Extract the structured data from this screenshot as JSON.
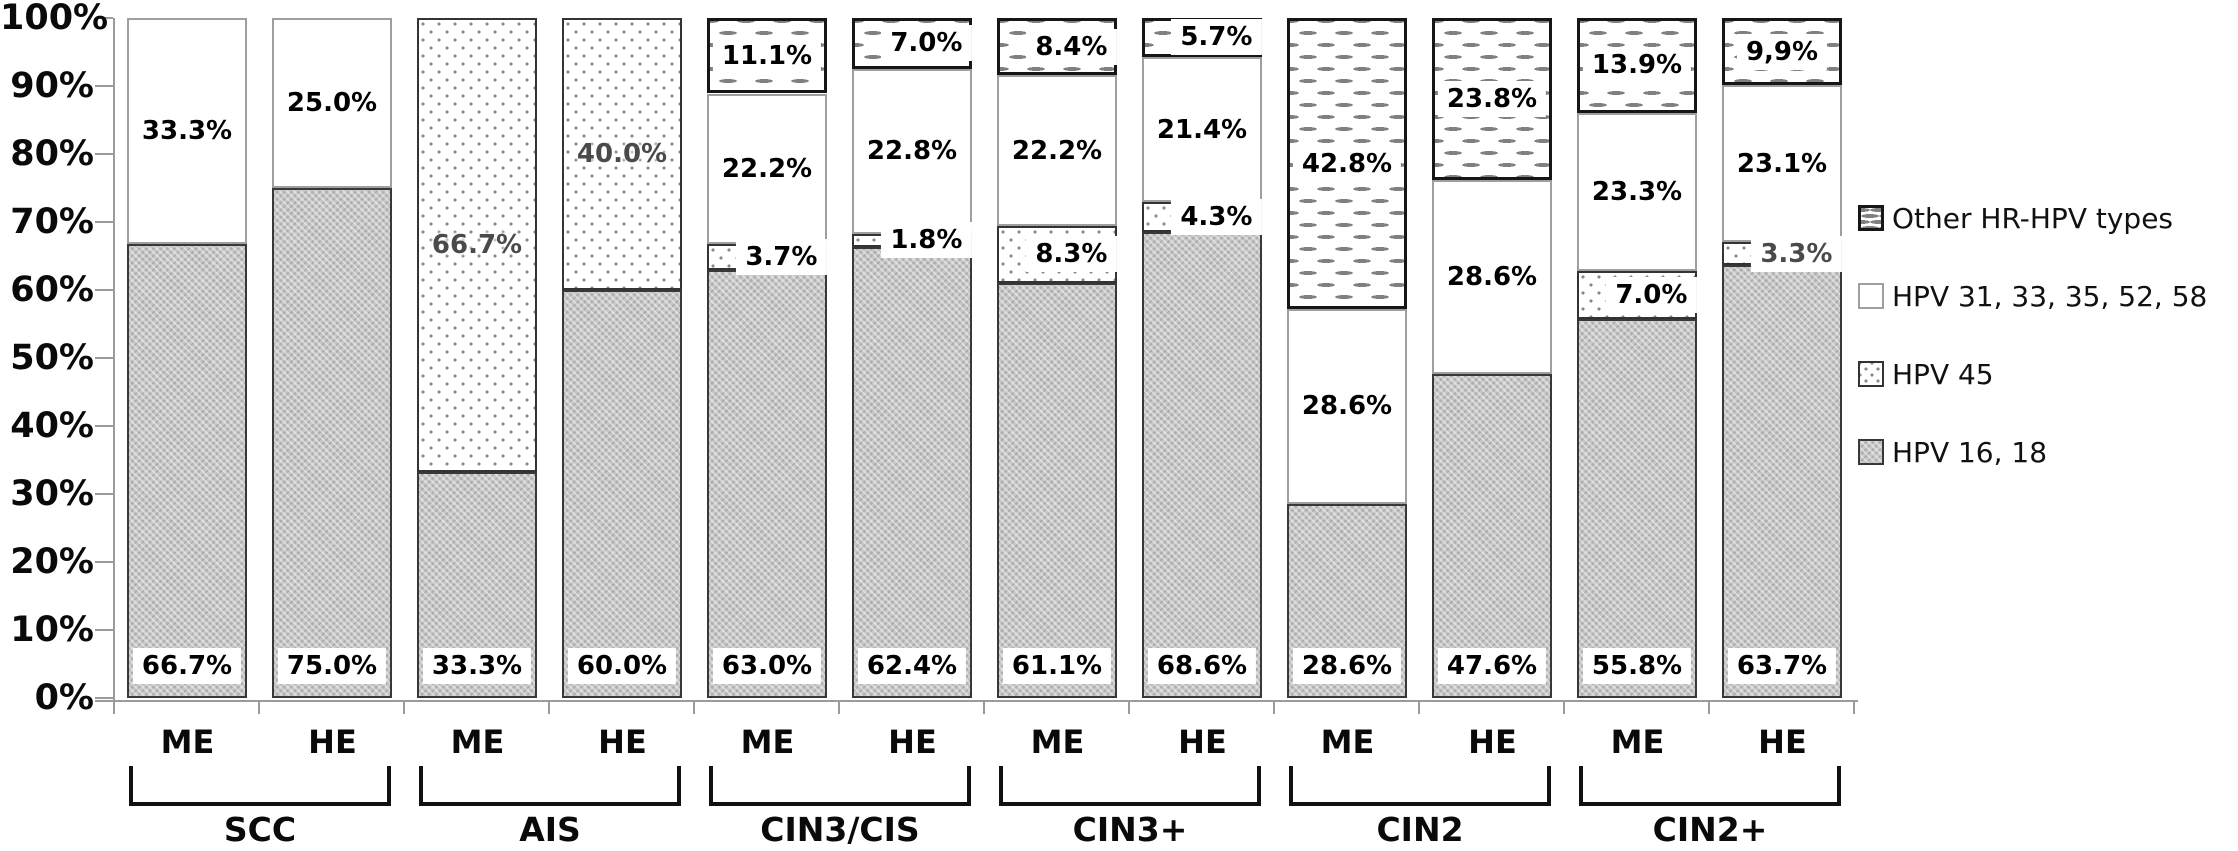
{
  "chart_data": {
    "type": "bar",
    "stacked": true,
    "percent_axis": true,
    "ylim": [
      0,
      100
    ],
    "grid": false,
    "legend_position": "right",
    "ytick_labels": [
      "0%",
      "10%",
      "20%",
      "30%",
      "40%",
      "50%",
      "60%",
      "70%",
      "80%",
      "90%",
      "100%"
    ],
    "series_order_bottom_to_top": [
      "hpv1618",
      "hpv45",
      "hpv31",
      "other"
    ],
    "legend": [
      {
        "key": "other",
        "label": "Other HR-HPV types",
        "pattern": "horizontal-dashes"
      },
      {
        "key": "hpv31",
        "label": "HPV 31, 33, 35, 52, 58",
        "pattern": "plain-white"
      },
      {
        "key": "hpv45",
        "label": "HPV 45",
        "pattern": "dots"
      },
      {
        "key": "hpv1618",
        "label": "HPV 16, 18",
        "pattern": "gray-weave"
      }
    ],
    "groups": [
      {
        "label": "SCC",
        "bars": [
          {
            "label": "ME",
            "segments": [
              {
                "series": "hpv1618",
                "value": 66.7,
                "label": "66.7%"
              },
              {
                "series": "hpv31",
                "value": 33.3,
                "label": "33.3%"
              }
            ]
          },
          {
            "label": "HE",
            "segments": [
              {
                "series": "hpv1618",
                "value": 75.0,
                "label": "75.0%"
              },
              {
                "series": "hpv31",
                "value": 25.0,
                "label": "25.0%"
              }
            ]
          }
        ]
      },
      {
        "label": "AIS",
        "bars": [
          {
            "label": "ME",
            "segments": [
              {
                "series": "hpv1618",
                "value": 33.3,
                "label": "33.3%"
              },
              {
                "series": "hpv45",
                "value": 66.7,
                "label": "66.7%",
                "muted": true,
                "nobox": true
              }
            ]
          },
          {
            "label": "HE",
            "segments": [
              {
                "series": "hpv1618",
                "value": 60.0,
                "label": "60.0%"
              },
              {
                "series": "hpv45",
                "value": 40.0,
                "label": "40.0%",
                "muted": true,
                "nobox": true
              }
            ]
          }
        ]
      },
      {
        "label": "CIN3/CIS",
        "bars": [
          {
            "label": "ME",
            "segments": [
              {
                "series": "hpv1618",
                "value": 63.0,
                "label": "63.0%"
              },
              {
                "series": "hpv45",
                "value": 3.7,
                "label": "3.7%"
              },
              {
                "series": "hpv31",
                "value": 22.2,
                "label": "22.2%"
              },
              {
                "series": "other",
                "value": 11.1,
                "label": "11.1%"
              }
            ]
          },
          {
            "label": "HE",
            "segments": [
              {
                "series": "hpv1618",
                "value": 62.4,
                "label": "62.4%"
              },
              {
                "series": "hpv45",
                "value": 1.8,
                "label": "1.8%"
              },
              {
                "series": "hpv31",
                "value": 22.8,
                "label": "22.8%"
              },
              {
                "series": "other",
                "value": 7.0,
                "label": "7.0%"
              }
            ]
          }
        ]
      },
      {
        "label": "CIN3+",
        "bars": [
          {
            "label": "ME",
            "segments": [
              {
                "series": "hpv1618",
                "value": 61.1,
                "label": "61.1%"
              },
              {
                "series": "hpv45",
                "value": 8.3,
                "label": "8.3%"
              },
              {
                "series": "hpv31",
                "value": 22.2,
                "label": "22.2%"
              },
              {
                "series": "other",
                "value": 8.4,
                "label": "8.4%"
              }
            ]
          },
          {
            "label": "HE",
            "segments": [
              {
                "series": "hpv1618",
                "value": 68.6,
                "label": "68.6%"
              },
              {
                "series": "hpv45",
                "value": 4.3,
                "label": "4.3%"
              },
              {
                "series": "hpv31",
                "value": 21.4,
                "label": "21.4%"
              },
              {
                "series": "other",
                "value": 5.7,
                "label": "5.7%"
              }
            ]
          }
        ]
      },
      {
        "label": "CIN2",
        "bars": [
          {
            "label": "ME",
            "segments": [
              {
                "series": "hpv1618",
                "value": 28.6,
                "label": "28.6%"
              },
              {
                "series": "hpv31",
                "value": 28.6,
                "label": "28.6%"
              },
              {
                "series": "other",
                "value": 42.8,
                "label": "42.8%"
              }
            ]
          },
          {
            "label": "HE",
            "segments": [
              {
                "series": "hpv1618",
                "value": 47.6,
                "label": "47.6%"
              },
              {
                "series": "hpv31",
                "value": 28.6,
                "label": "28.6%"
              },
              {
                "series": "other",
                "value": 23.8,
                "label": "23.8%"
              }
            ]
          }
        ]
      },
      {
        "label": "CIN2+",
        "bars": [
          {
            "label": "ME",
            "segments": [
              {
                "series": "hpv1618",
                "value": 55.8,
                "label": "55.8%"
              },
              {
                "series": "hpv45",
                "value": 7.0,
                "label": "7.0%"
              },
              {
                "series": "hpv31",
                "value": 23.3,
                "label": "23.3%"
              },
              {
                "series": "other",
                "value": 13.9,
                "label": "13.9%"
              }
            ]
          },
          {
            "label": "HE",
            "segments": [
              {
                "series": "hpv1618",
                "value": 63.7,
                "label": "63.7%"
              },
              {
                "series": "hpv45",
                "value": 3.3,
                "label": "3.3%",
                "muted": true
              },
              {
                "series": "hpv31",
                "value": 23.1,
                "label": "23.1%"
              },
              {
                "series": "other",
                "value": 9.9,
                "label": "9,9%"
              }
            ]
          }
        ]
      }
    ],
    "colors": {
      "hpv1618_fill": "#c7c7c7",
      "pattern_ink": "#8a8a8a",
      "segment_border_dark": "#2f2f2f",
      "segment_border_light": "#9f9f9f",
      "axis": "#9b9b9b",
      "label_text": "#000000",
      "muted_label_text": "#4a4a4a"
    }
  }
}
